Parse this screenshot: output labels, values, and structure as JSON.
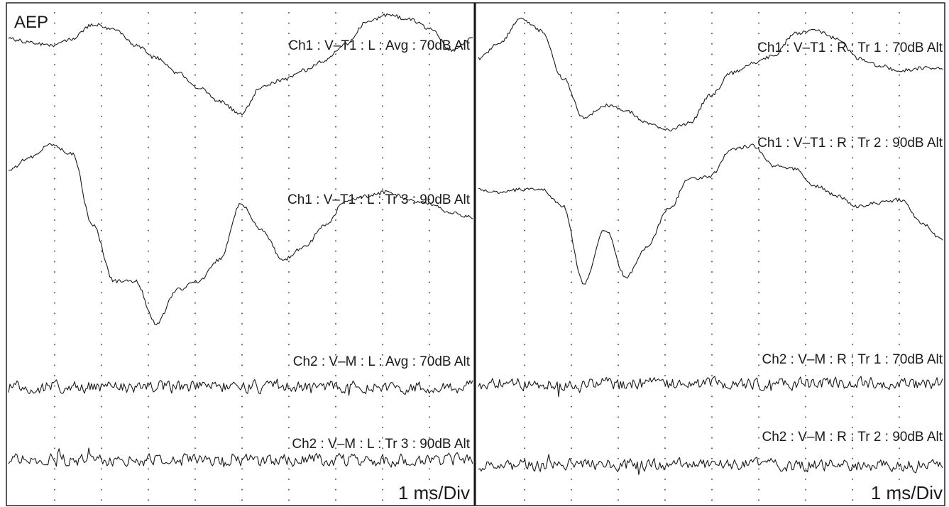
{
  "app_label": "AEP",
  "chart_data": [
    {
      "type": "line",
      "panel": "left",
      "grid": true,
      "x_scale_label": "1 ms/Div",
      "series": [
        {
          "name": "Ch1 : V–T1 : L : Avg : 70dB Alt",
          "kind": "aep",
          "y": [
            0.55,
            0.48,
            0.4,
            0.55,
            0.85,
            0.75,
            0.42,
            0.15,
            -0.15,
            -0.45,
            -0.75,
            -1.0,
            -0.45,
            -0.3,
            -0.1,
            0.1,
            0.45,
            0.9,
            1.05,
            0.95,
            0.75,
            0.3,
            0.55
          ]
        },
        {
          "name": "Ch1 : V–T1 : L : Tr 3 : 90dB Alt",
          "kind": "aep",
          "y": [
            0.75,
            0.9,
            1.05,
            0.95,
            0.1,
            -0.55,
            -0.55,
            -1.05,
            -0.65,
            -0.55,
            -0.3,
            0.35,
            0.05,
            -0.3,
            -0.15,
            0.1,
            0.4,
            0.45,
            0.5,
            0.4,
            0.35,
            0.25,
            0.2
          ]
        },
        {
          "name": "Ch2 : V–M : L : Avg : 70dB Alt",
          "kind": "noise",
          "seed": 11,
          "y": []
        },
        {
          "name": "Ch2 : V–M : L : Tr 3 : 90dB Alt",
          "kind": "noise",
          "seed": 23,
          "y": []
        }
      ]
    },
    {
      "type": "line",
      "panel": "right",
      "grid": true,
      "x_scale_label": "1 ms/Div",
      "series": [
        {
          "name": "Ch1 : V–T1 : R : Tr 1 : 70dB Alt",
          "kind": "aep",
          "y": [
            0.4,
            0.7,
            1.2,
            0.95,
            0.0,
            -0.8,
            -0.55,
            -0.65,
            -0.9,
            -1.05,
            -0.9,
            -0.35,
            0.1,
            0.3,
            0.45,
            0.9,
            0.95,
            0.8,
            0.4,
            0.25,
            0.15,
            0.2,
            0.2
          ]
        },
        {
          "name": "Ch1 : V–T1 : R : Tr 2 : 90dB Alt",
          "kind": "aep",
          "y": [
            0.35,
            0.3,
            0.35,
            0.35,
            0.1,
            -1.05,
            -0.25,
            -0.95,
            -0.5,
            0.05,
            0.5,
            0.55,
            0.95,
            1.0,
            0.7,
            0.65,
            0.4,
            0.25,
            0.1,
            0.15,
            0.2,
            -0.15,
            -0.4
          ]
        },
        {
          "name": "Ch2 : V–M : R : Tr 1 : 70dB Alt",
          "kind": "noise",
          "seed": 37,
          "y": []
        },
        {
          "name": "Ch2 : V–M : R : Tr 2 : 90dB Alt",
          "kind": "noise",
          "seed": 53,
          "y": []
        }
      ]
    }
  ]
}
